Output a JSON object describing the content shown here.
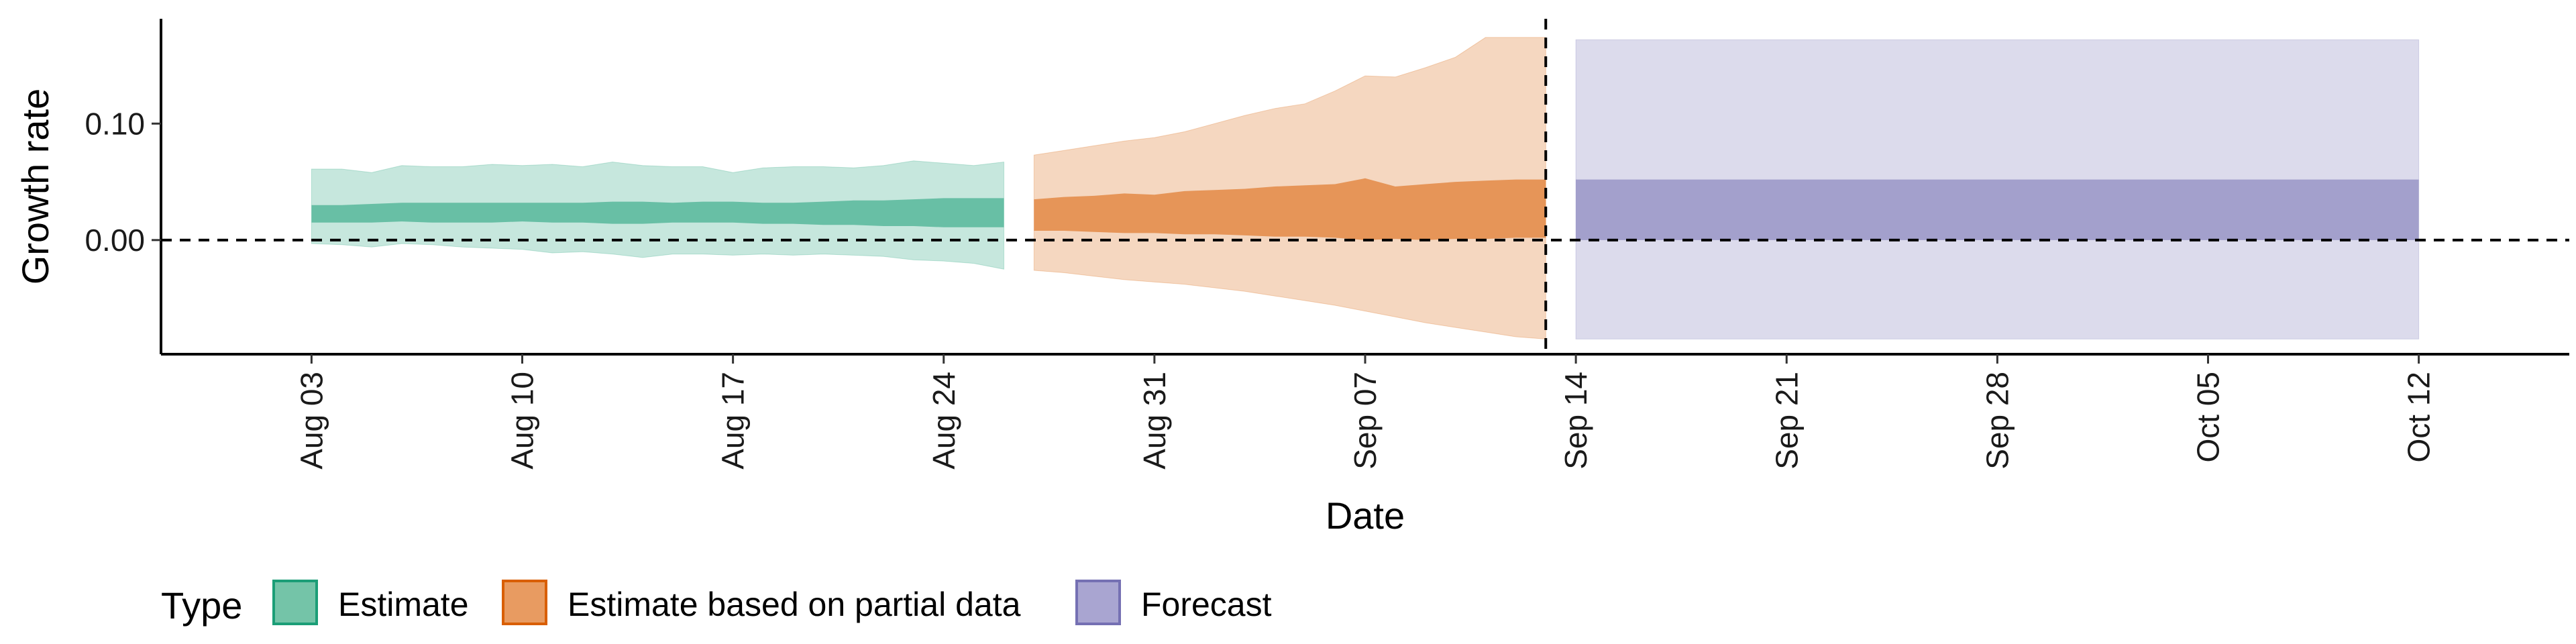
{
  "chart_data": {
    "type": "area",
    "title": "",
    "xlabel": "Date",
    "ylabel": "Growth rate",
    "x_type": "date",
    "xlim": [
      "2020-07-29",
      "2020-10-17"
    ],
    "ylim": [
      -0.098,
      0.19
    ],
    "x_ticks": [
      {
        "date": "2020-08-03",
        "label": "Aug 03"
      },
      {
        "date": "2020-08-10",
        "label": "Aug 10"
      },
      {
        "date": "2020-08-17",
        "label": "Aug 17"
      },
      {
        "date": "2020-08-24",
        "label": "Aug 24"
      },
      {
        "date": "2020-08-31",
        "label": "Aug 31"
      },
      {
        "date": "2020-09-07",
        "label": "Sep 07"
      },
      {
        "date": "2020-09-14",
        "label": "Sep 14"
      },
      {
        "date": "2020-09-21",
        "label": "Sep 21"
      },
      {
        "date": "2020-09-28",
        "label": "Sep 28"
      },
      {
        "date": "2020-10-05",
        "label": "Oct 05"
      },
      {
        "date": "2020-10-12",
        "label": "Oct 12"
      }
    ],
    "y_ticks": [
      {
        "value": 0.0,
        "label": "0.00"
      },
      {
        "value": 0.1,
        "label": "0.10"
      }
    ],
    "reference_lines": {
      "horizontal_y": 0.0,
      "vertical_x": "2020-09-13"
    },
    "legend": {
      "title": "Type",
      "position": "bottom-left",
      "entries": [
        {
          "label": "Estimate",
          "fill": "#74c4a8",
          "border": "#1b9e77"
        },
        {
          "label": "Estimate based on partial data",
          "fill": "#e89b61",
          "border": "#d95f02"
        },
        {
          "label": "Forecast",
          "fill": "#a9a5d1",
          "border": "#7570b3"
        }
      ]
    },
    "series": [
      {
        "name": "Estimate",
        "fill_color": "#1b9e77",
        "x": [
          "2020-08-03",
          "2020-08-04",
          "2020-08-05",
          "2020-08-06",
          "2020-08-07",
          "2020-08-08",
          "2020-08-09",
          "2020-08-10",
          "2020-08-11",
          "2020-08-12",
          "2020-08-13",
          "2020-08-14",
          "2020-08-15",
          "2020-08-16",
          "2020-08-17",
          "2020-08-18",
          "2020-08-19",
          "2020-08-20",
          "2020-08-21",
          "2020-08-22",
          "2020-08-23",
          "2020-08-24",
          "2020-08-25",
          "2020-08-26"
        ],
        "lower_90": [
          -0.003,
          -0.004,
          -0.006,
          -0.003,
          -0.004,
          -0.006,
          -0.007,
          -0.008,
          -0.011,
          -0.01,
          -0.012,
          -0.015,
          -0.012,
          -0.012,
          -0.013,
          -0.012,
          -0.013,
          -0.012,
          -0.013,
          -0.014,
          -0.017,
          -0.018,
          -0.02,
          -0.025
        ],
        "upper_90": [
          0.061,
          0.061,
          0.058,
          0.064,
          0.063,
          0.063,
          0.065,
          0.064,
          0.065,
          0.063,
          0.067,
          0.064,
          0.063,
          0.063,
          0.058,
          0.062,
          0.063,
          0.063,
          0.062,
          0.064,
          0.068,
          0.066,
          0.064,
          0.067
        ],
        "lower_50": [
          0.015,
          0.015,
          0.015,
          0.016,
          0.015,
          0.015,
          0.015,
          0.016,
          0.015,
          0.015,
          0.014,
          0.014,
          0.015,
          0.015,
          0.015,
          0.014,
          0.014,
          0.013,
          0.013,
          0.012,
          0.012,
          0.011,
          0.011,
          0.011
        ],
        "upper_50": [
          0.03,
          0.03,
          0.031,
          0.032,
          0.032,
          0.032,
          0.032,
          0.032,
          0.032,
          0.032,
          0.033,
          0.033,
          0.032,
          0.033,
          0.033,
          0.032,
          0.032,
          0.033,
          0.034,
          0.034,
          0.035,
          0.036,
          0.036,
          0.036
        ]
      },
      {
        "name": "Estimate based on partial data",
        "fill_color": "#d95f02",
        "x": [
          "2020-08-27",
          "2020-08-28",
          "2020-08-29",
          "2020-08-30",
          "2020-08-31",
          "2020-09-01",
          "2020-09-02",
          "2020-09-03",
          "2020-09-04",
          "2020-09-05",
          "2020-09-06",
          "2020-09-07",
          "2020-09-08",
          "2020-09-09",
          "2020-09-10",
          "2020-09-11",
          "2020-09-12",
          "2020-09-13"
        ],
        "lower_90": [
          -0.026,
          -0.028,
          -0.031,
          -0.034,
          -0.036,
          -0.038,
          -0.041,
          -0.044,
          -0.048,
          -0.052,
          -0.056,
          -0.061,
          -0.066,
          -0.071,
          -0.075,
          -0.079,
          -0.083,
          -0.085
        ],
        "upper_90": [
          0.073,
          0.077,
          0.081,
          0.085,
          0.088,
          0.093,
          0.1,
          0.107,
          0.113,
          0.117,
          0.128,
          0.141,
          0.14,
          0.148,
          0.157,
          0.174,
          0.174,
          0.174
        ],
        "lower_50": [
          0.008,
          0.008,
          0.007,
          0.006,
          0.006,
          0.005,
          0.005,
          0.004,
          0.003,
          0.003,
          0.002,
          0.0,
          0.001,
          0.0,
          0.001,
          0.001,
          0.002,
          0.002
        ],
        "upper_50": [
          0.035,
          0.037,
          0.038,
          0.04,
          0.039,
          0.042,
          0.043,
          0.044,
          0.046,
          0.047,
          0.048,
          0.053,
          0.046,
          0.048,
          0.05,
          0.051,
          0.052,
          0.052
        ]
      },
      {
        "name": "Forecast",
        "fill_color": "#7570b3",
        "x": [
          "2020-09-14",
          "2020-10-12"
        ],
        "lower_90": [
          -0.085,
          -0.085
        ],
        "upper_90": [
          0.172,
          0.172
        ],
        "lower_50": [
          0.0,
          0.0
        ],
        "upper_50": [
          0.052,
          0.052
        ]
      }
    ]
  }
}
